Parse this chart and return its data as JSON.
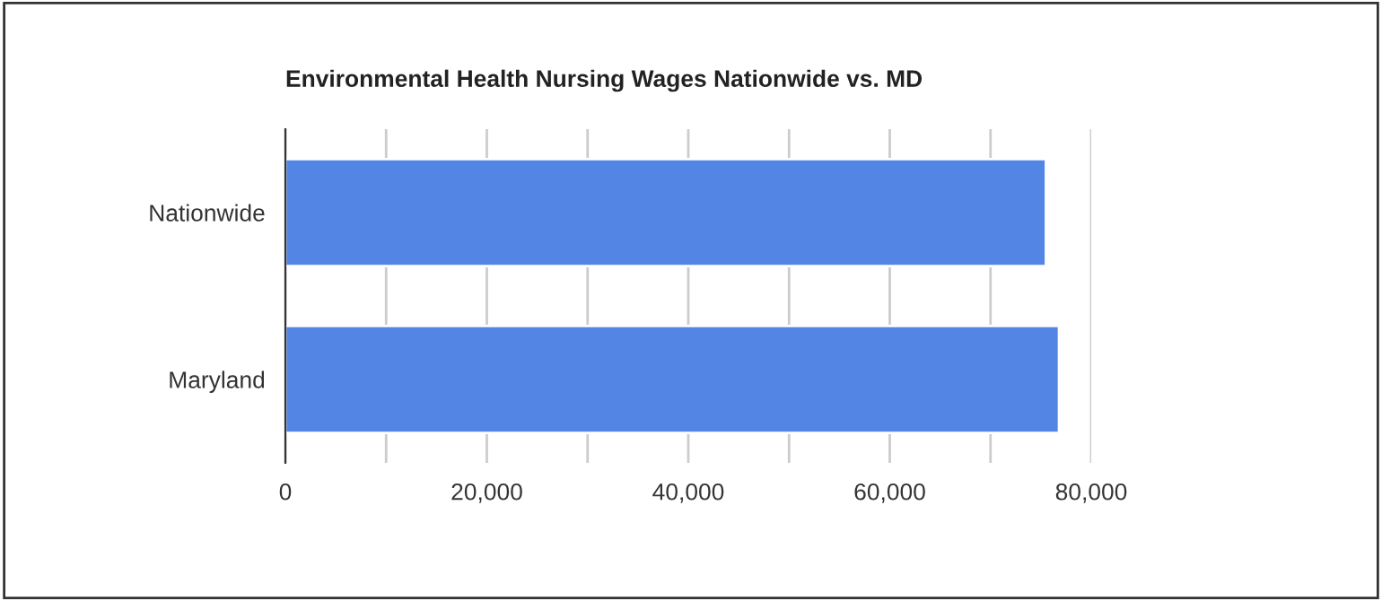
{
  "chart_data": {
    "type": "bar",
    "orientation": "horizontal",
    "title": "Environmental Health Nursing Wages Nationwide vs. MD",
    "categories": [
      "Nationwide",
      "Maryland"
    ],
    "series": [
      {
        "color": "#5386e4",
        "values": [
          75500,
          76800
        ]
      }
    ],
    "xlim": [
      0,
      80000
    ],
    "xticks": [
      0,
      {
        "value": 10000,
        "label": null
      },
      {
        "value": 20000,
        "label": "20,000"
      },
      {
        "value": 30000,
        "label": null
      },
      {
        "value": 40000,
        "label": "40,000"
      },
      {
        "value": 50000,
        "label": null
      },
      {
        "value": 60000,
        "label": "60,000"
      },
      {
        "value": 70000,
        "label": null
      },
      {
        "value": 80000,
        "label": "80,000"
      }
    ],
    "grid": "x",
    "legend": false
  }
}
